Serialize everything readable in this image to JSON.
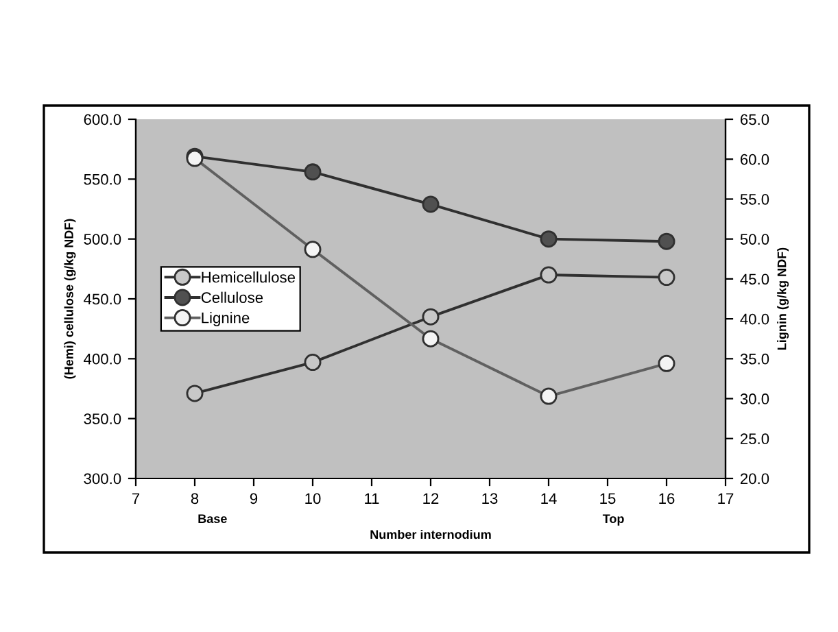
{
  "chart_data": {
    "type": "line",
    "xlabel": "Number internodium",
    "ylabel": "(Hemi) cellulose (g/kg NDF)",
    "y2label": "Lignin (g/kg NDF)",
    "annotations": [
      "Base",
      "Top"
    ],
    "x": [
      8,
      10,
      12,
      14,
      16
    ],
    "series": [
      {
        "name": "Hemicellulose",
        "color": "#c8c8c8",
        "values": [
          371,
          397,
          435,
          470,
          468
        ]
      },
      {
        "name": "Cellulose",
        "color": "#505050",
        "values": [
          569,
          556,
          529,
          500,
          498
        ]
      },
      {
        "name": "Lignine",
        "color": "#f4f4f4",
        "axis": "y2",
        "values": [
          60.1,
          48.7,
          37.5,
          30.3,
          34.4
        ]
      }
    ],
    "xlim": [
      7,
      17
    ],
    "xticks": [
      7,
      8,
      9,
      10,
      11,
      12,
      13,
      14,
      15,
      16,
      17
    ],
    "ylim": [
      300,
      600
    ],
    "yticks": [
      {
        "value": 300,
        "label": "300.0"
      },
      {
        "value": 350,
        "label": "350.0"
      },
      {
        "value": 400,
        "label": "400.0"
      },
      {
        "value": 450,
        "label": "450.0"
      },
      {
        "value": 500,
        "label": "500.0"
      },
      {
        "value": 550,
        "label": "550.0"
      },
      {
        "value": 600,
        "label": "600.0"
      }
    ],
    "y2lim": [
      20,
      65
    ],
    "y2ticks": [
      {
        "value": 20,
        "label": "20.0"
      },
      {
        "value": 25,
        "label": "25.0"
      },
      {
        "value": 30,
        "label": "30.0"
      },
      {
        "value": 35,
        "label": "35.0"
      },
      {
        "value": 40,
        "label": "40.0"
      },
      {
        "value": 45,
        "label": "45.0"
      },
      {
        "value": 50,
        "label": "50.0"
      },
      {
        "value": 55,
        "label": "55.0"
      },
      {
        "value": 60,
        "label": "60.0"
      },
      {
        "value": 65,
        "label": "65.0"
      }
    ],
    "grid": false,
    "legend": "left",
    "marker": "circle",
    "line_style": "solid"
  }
}
